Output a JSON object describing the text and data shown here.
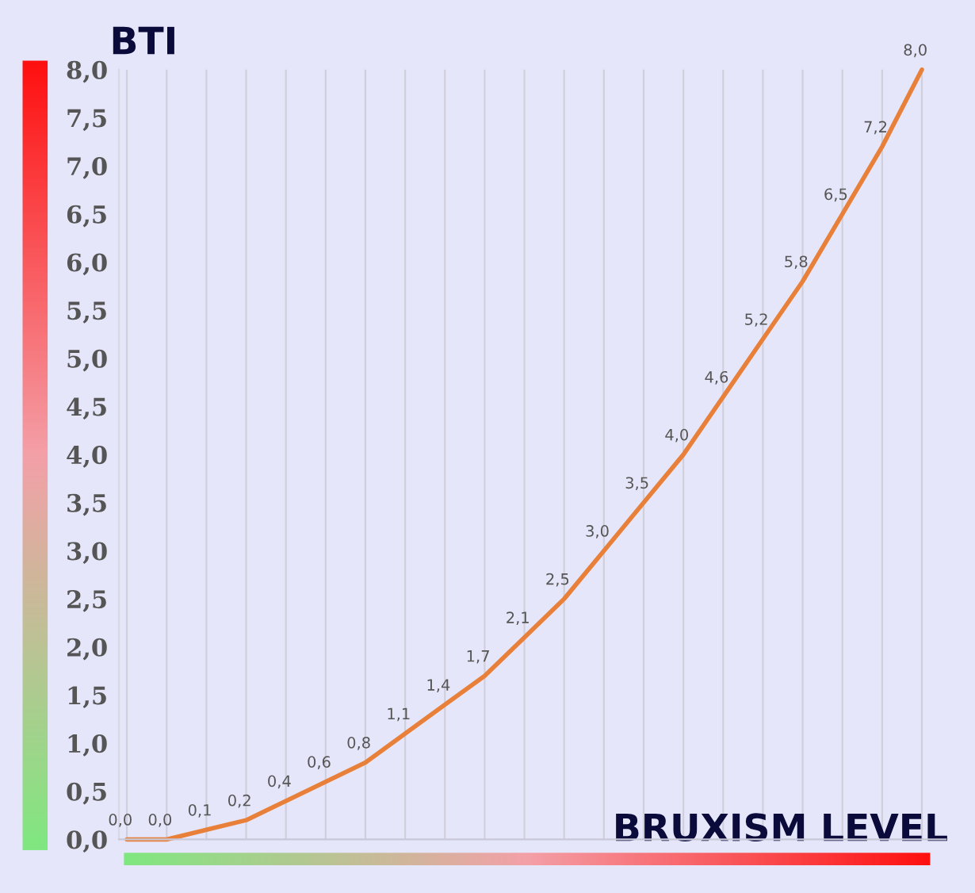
{
  "chart_data": {
    "type": "line",
    "xlabel": "BRUXISM LEVEL",
    "ylabel": "BTI",
    "categories": [
      null,
      null,
      null,
      null,
      null,
      null,
      null,
      null,
      null,
      null,
      null,
      null,
      null,
      null,
      null,
      null,
      null,
      null,
      null,
      null,
      null
    ],
    "series": [
      {
        "color": "#e8803a",
        "values": [
          0.0,
          0.0,
          0.1,
          0.2,
          0.4,
          0.6,
          0.8,
          1.1,
          1.4,
          1.7,
          2.1,
          2.5,
          3.0,
          3.5,
          4.0,
          4.6,
          5.2,
          5.8,
          6.5,
          7.2,
          8.0
        ],
        "value_labels": [
          "0,0",
          "0,0",
          "0,1",
          "0,2",
          "0,4",
          "0,6",
          "0,8",
          "1,1",
          "1,4",
          "1,7",
          "2,1",
          "2,5",
          "3,0",
          "3,5",
          "4,0",
          "4,6",
          "5,2",
          "5,8",
          "6,5",
          "7,2",
          "8,0"
        ]
      }
    ],
    "ylim": [
      0,
      8
    ],
    "yticks": [
      {
        "value": 0,
        "label": "0,0"
      },
      {
        "value": 0.5,
        "label": "0,5"
      },
      {
        "value": 1,
        "label": "1,0"
      },
      {
        "value": 1.5,
        "label": "1,5"
      },
      {
        "value": 2,
        "label": "2,0"
      },
      {
        "value": 2.5,
        "label": "2,5"
      },
      {
        "value": 3,
        "label": "3,0"
      },
      {
        "value": 3.5,
        "label": "3,5"
      },
      {
        "value": 4,
        "label": "4,0"
      },
      {
        "value": 4.5,
        "label": "4,5"
      },
      {
        "value": 5,
        "label": "5,0"
      },
      {
        "value": 5.5,
        "label": "5,5"
      },
      {
        "value": 6,
        "label": "6,0"
      },
      {
        "value": 6.5,
        "label": "6,5"
      },
      {
        "value": 7,
        "label": "7,0"
      },
      {
        "value": 7.5,
        "label": "7,5"
      },
      {
        "value": 8,
        "label": "8,0"
      }
    ],
    "grid": "x",
    "tick_labels": "y",
    "marker": "none",
    "line_style": "solid"
  }
}
